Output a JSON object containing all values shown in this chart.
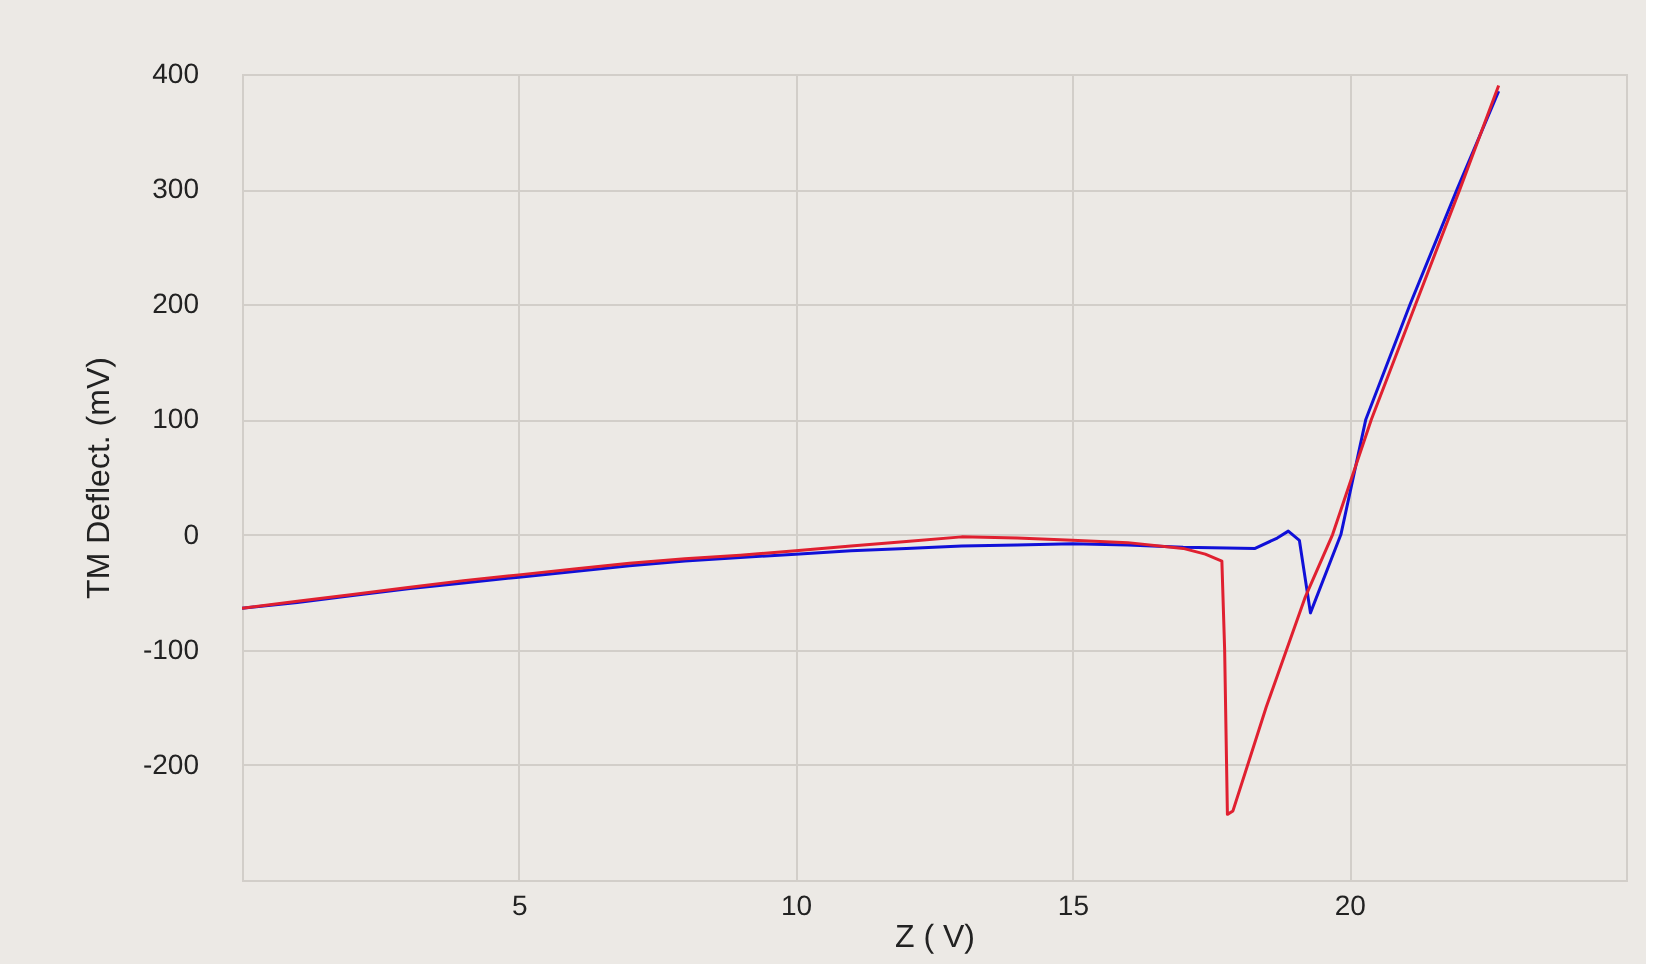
{
  "chart_data": {
    "type": "line",
    "xlabel": "Z ( V)",
    "ylabel": "TM Deflect. (mV)",
    "xlim": [
      0,
      25
    ],
    "xticks": [
      5,
      10,
      15,
      20
    ],
    "ylim": [
      -300,
      400
    ],
    "yticks": [
      -200,
      -100,
      0,
      100,
      200,
      300,
      400
    ],
    "grid": true,
    "marker": "none",
    "line_style": "solid",
    "series": [
      {
        "color": "#1010d8",
        "x": [
          0,
          1,
          2,
          3,
          4,
          5,
          6,
          7,
          8,
          9,
          10,
          11,
          12,
          13,
          14,
          15,
          16,
          17,
          18.3,
          18.7,
          18.9,
          19.1,
          19.3,
          19.85,
          20.3,
          21.1,
          21.95,
          22.7
        ],
        "values": [
          -64,
          -59,
          -53,
          -47,
          -42,
          -37,
          -32,
          -27,
          -23,
          -20,
          -17,
          -14,
          -12,
          -10,
          -9,
          -8,
          -9,
          -11,
          -12,
          -3,
          3,
          -5,
          -68,
          0,
          100,
          200,
          300,
          385
        ]
      },
      {
        "color": "#e02030",
        "x": [
          0,
          1,
          2,
          3,
          4,
          5,
          6,
          7,
          8,
          9,
          10,
          11,
          12,
          13,
          14,
          15,
          16,
          17,
          17.4,
          17.7,
          17.75,
          17.8,
          17.9,
          18.5,
          19.2,
          19.7,
          20.4,
          21.2,
          22.0,
          22.7
        ],
        "values": [
          -64,
          -58,
          -52,
          -46,
          -40,
          -35,
          -30,
          -25,
          -21,
          -18,
          -14,
          -10,
          -6,
          -2,
          -3,
          -5,
          -7,
          -12,
          -17,
          -23,
          -100,
          -243,
          -240,
          -150,
          -55,
          0,
          100,
          200,
          300,
          390
        ]
      }
    ]
  }
}
